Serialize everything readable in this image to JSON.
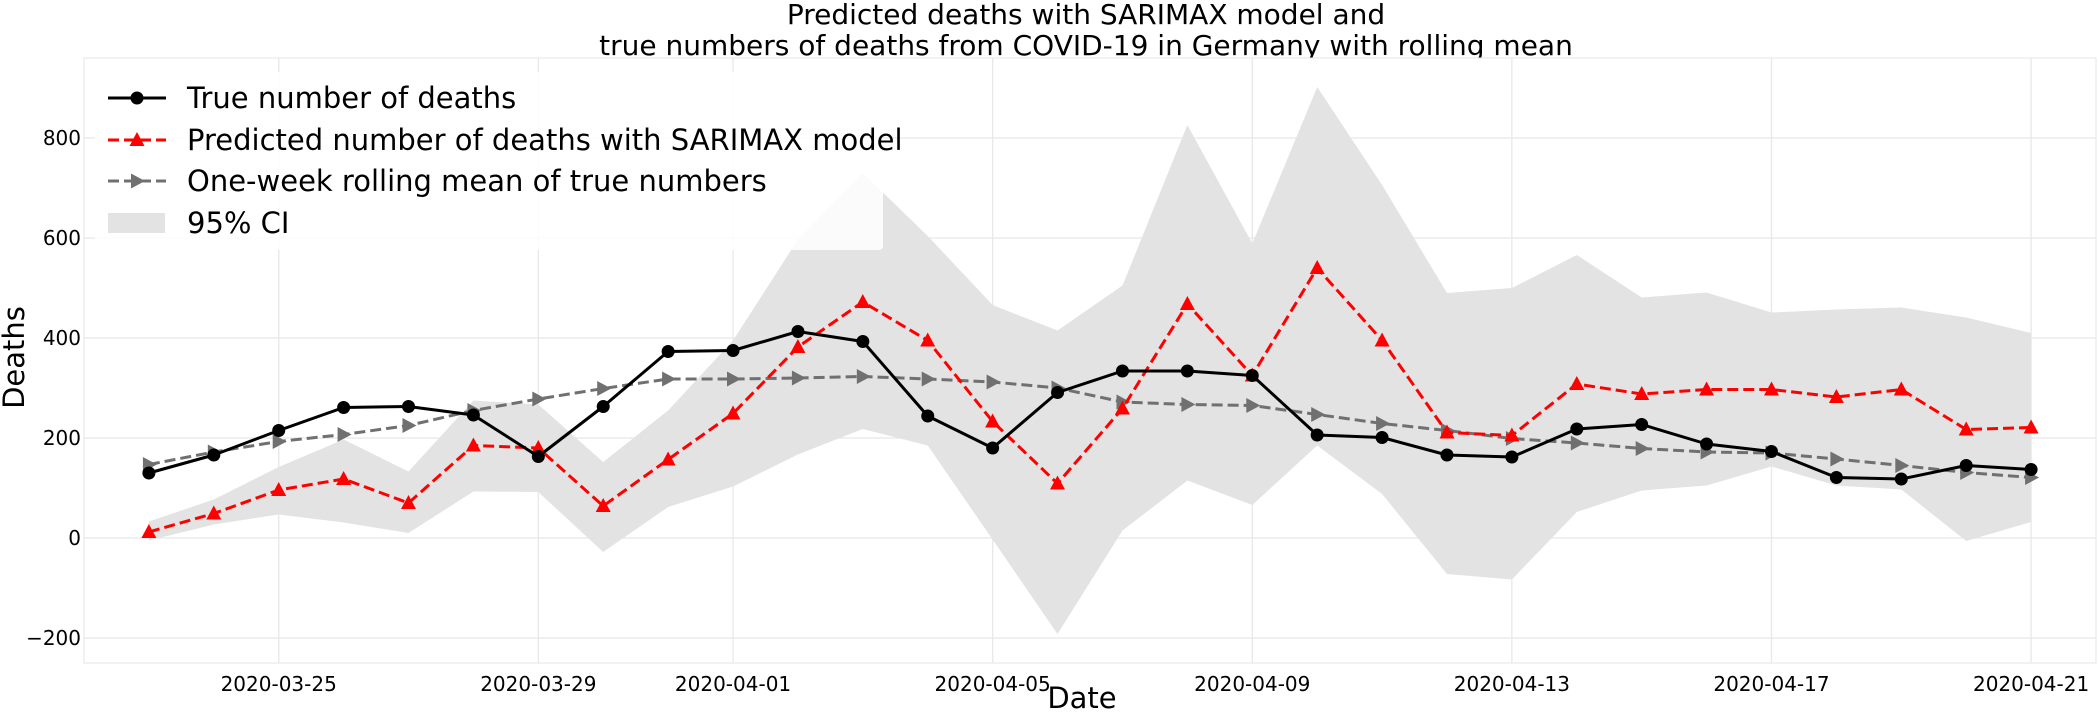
{
  "chart_data": {
    "type": "line",
    "title_lines": [
      "Predicted deaths with SARIMAX model and",
      "true numbers of deaths from COVID-19 in Germany with rolling mean"
    ],
    "xlabel": "Date",
    "ylabel": "Deaths",
    "x": [
      "2020-03-23",
      "2020-03-24",
      "2020-03-25",
      "2020-03-26",
      "2020-03-27",
      "2020-03-28",
      "2020-03-29",
      "2020-03-30",
      "2020-03-31",
      "2020-04-01",
      "2020-04-02",
      "2020-04-03",
      "2020-04-04",
      "2020-04-05",
      "2020-04-06",
      "2020-04-07",
      "2020-04-08",
      "2020-04-09",
      "2020-04-10",
      "2020-04-11",
      "2020-04-12",
      "2020-04-13",
      "2020-04-14",
      "2020-04-15",
      "2020-04-16",
      "2020-04-17",
      "2020-04-18",
      "2020-04-19",
      "2020-04-20",
      "2020-04-21"
    ],
    "x_ticks": [
      "2020-03-25",
      "2020-03-29",
      "2020-04-01",
      "2020-04-05",
      "2020-04-09",
      "2020-04-13",
      "2020-04-17",
      "2020-04-21"
    ],
    "xlim": [
      "2020-03-22",
      "2020-04-22"
    ],
    "ylim": [
      -250,
      960
    ],
    "y_ticks": [
      -200,
      0,
      200,
      400,
      600,
      800
    ],
    "grid": true,
    "legend_position": "top-left",
    "series": [
      {
        "name": "True number of deaths",
        "color": "#000000",
        "line_style": "solid",
        "marker": "circle",
        "values": [
          130,
          166,
          215,
          261,
          263,
          246,
          163,
          263,
          373,
          375,
          413,
          393,
          244,
          180,
          291,
          334,
          334,
          325,
          206,
          201,
          166,
          162,
          218,
          227,
          188,
          173,
          121,
          118,
          145,
          137
        ]
      },
      {
        "name": "Predicted number of deaths with SARIMAX model",
        "color": "#ff0000",
        "line_style": "dashed",
        "marker": "triangle-up",
        "values": [
          12,
          49,
          96,
          118,
          70,
          185,
          180,
          64,
          157,
          249,
          382,
          472,
          395,
          233,
          109,
          259,
          468,
          325,
          540,
          395,
          211,
          205,
          308,
          288,
          297,
          297,
          282,
          297,
          217,
          221
        ]
      },
      {
        "name": "One-week rolling mean of true numbers",
        "color": "#707070",
        "line_style": "dashed",
        "marker": "triangle-right",
        "values": [
          147,
          172,
          193,
          207,
          225,
          255,
          278,
          299,
          318,
          318,
          320,
          323,
          318,
          312,
          300,
          272,
          267,
          265,
          247,
          229,
          215,
          199,
          190,
          179,
          172,
          170,
          158,
          145,
          131,
          121
        ]
      }
    ],
    "ci": {
      "name": "95% CI",
      "color": "#e3e3e3",
      "lower": [
        -5,
        27,
        47,
        31,
        10,
        93,
        92,
        -28,
        62,
        103,
        167,
        218,
        185,
        -3,
        -192,
        15,
        115,
        66,
        185,
        88,
        -72,
        -83,
        52,
        95,
        105,
        143,
        105,
        97,
        -6,
        32
      ],
      "upper": [
        33,
        77,
        142,
        197,
        133,
        275,
        267,
        152,
        255,
        395,
        597,
        730,
        604,
        466,
        415,
        505,
        826,
        589,
        902,
        706,
        490,
        500,
        566,
        481,
        491,
        451,
        457,
        461,
        441,
        410
      ]
    }
  }
}
